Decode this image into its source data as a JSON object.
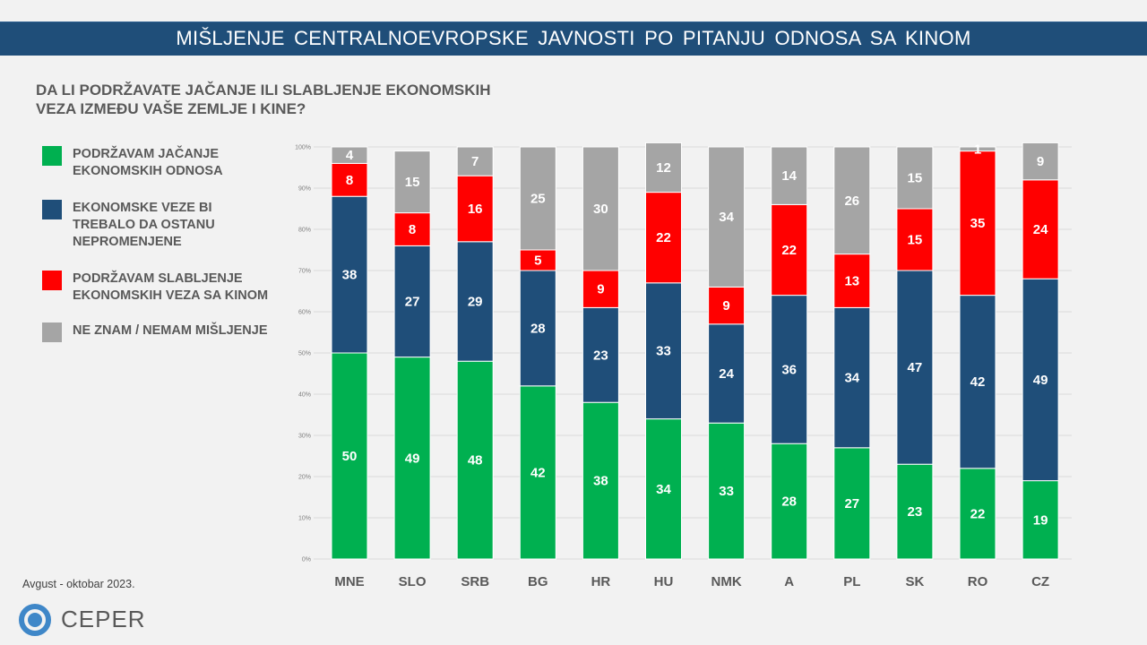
{
  "header": {
    "title": "MIŠLJENJE CENTRALNOEVROPSKE JAVNOSTI PO PITANJU ODNOSA SA KINOM"
  },
  "question": {
    "line1": "DA LI PODRŽAVATE JAČANJE ILI SLABLJENJE EKONOMSKIH",
    "line2": "VEZA IZMEĐU VAŠE ZEMLJE I KINE?"
  },
  "legend": [
    {
      "label": "PODRŽAVAM JAČANJE\nEKONOMSKIH ODNOSA",
      "color": "#00b050"
    },
    {
      "label": "EKONOMSKE VEZE BI\nTREBALO DA OSTANU\nNEPROMENJENE",
      "color": "#1f4e79"
    },
    {
      "label": "PODRŽAVAM SLABLJENJE\nEKONOMSKIH VEZA SA KINOM",
      "color": "#ff0000"
    },
    {
      "label": "NE ZNAM / NEMAM MIŠLJENJE",
      "color": "#a5a5a5"
    }
  ],
  "footer": {
    "date": "Avgust - oktobar 2023.",
    "logo_text": "CEPER",
    "logo_color": "#3f87c8"
  },
  "chart_data": {
    "type": "bar",
    "stacked": true,
    "title": "DA LI PODRŽAVATE JAČANJE ILI SLABLJENJE EKONOMSKIH VEZA IZMEĐU VAŠE ZEMLJE I KINE?",
    "xlabel": "",
    "ylabel": "",
    "ylim": [
      0,
      100
    ],
    "yticks": [
      "0%",
      "10%",
      "20%",
      "30%",
      "40%",
      "50%",
      "60%",
      "70%",
      "80%",
      "90%",
      "100%"
    ],
    "grid": true,
    "legend_position": "left",
    "categories": [
      "MNE",
      "SLO",
      "SRB",
      "BG",
      "HR",
      "HU",
      "NMK",
      "A",
      "PL",
      "SK",
      "RO",
      "CZ"
    ],
    "series": [
      {
        "name": "PODRŽAVAM JAČANJE EKONOMSKIH ODNOSA",
        "color": "#00b050",
        "values": [
          50,
          49,
          48,
          42,
          38,
          34,
          33,
          28,
          27,
          23,
          22,
          19
        ]
      },
      {
        "name": "EKONOMSKE VEZE BI TREBALO DA OSTANU NEPROMENJENE",
        "color": "#1f4e79",
        "values": [
          38,
          27,
          29,
          28,
          23,
          33,
          24,
          36,
          34,
          47,
          42,
          49
        ]
      },
      {
        "name": "PODRŽAVAM SLABLJENJE EKONOMSKIH VEZA SA KINOM",
        "color": "#ff0000",
        "values": [
          8,
          8,
          16,
          5,
          9,
          22,
          9,
          22,
          13,
          15,
          35,
          24
        ]
      },
      {
        "name": "NE ZNAM / NEMAM MIŠLJENJE",
        "color": "#a5a5a5",
        "values": [
          4,
          15,
          7,
          25,
          30,
          12,
          34,
          14,
          26,
          15,
          1,
          9
        ]
      }
    ]
  }
}
